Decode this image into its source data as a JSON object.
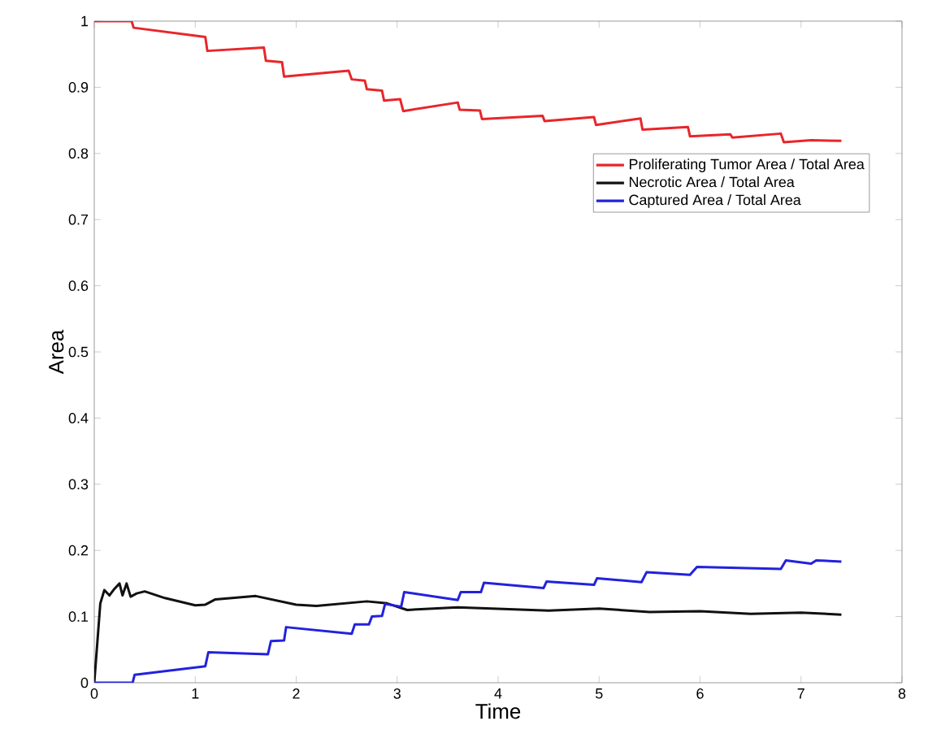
{
  "chart_data": {
    "type": "line",
    "xlabel": "Time",
    "ylabel": "Area",
    "xlim": [
      0,
      8
    ],
    "xticks": [
      0,
      1,
      2,
      3,
      4,
      5,
      6,
      7,
      8
    ],
    "ylim": [
      0,
      1
    ],
    "yticks": [
      0,
      0.1,
      0.2,
      0.3,
      0.4,
      0.5,
      0.6,
      0.7,
      0.8,
      0.9,
      1
    ],
    "grid": false,
    "legend": "top right",
    "line_style": "solid",
    "marker": "none",
    "series": [
      {
        "name": "Proliferating Tumor Area / Total Area",
        "color": "#e8262a",
        "x": [
          0,
          0.37,
          0.39,
          1.1,
          1.12,
          1.68,
          1.7,
          1.86,
          1.88,
          2.52,
          2.55,
          2.68,
          2.7,
          2.85,
          2.87,
          3.03,
          3.06,
          3.6,
          3.62,
          3.82,
          3.84,
          4.44,
          4.46,
          4.95,
          4.97,
          5.41,
          5.43,
          5.88,
          5.9,
          6.3,
          6.32,
          6.8,
          6.83,
          7.1,
          7.4
        ],
        "values": [
          1,
          1,
          0.99,
          0.976,
          0.955,
          0.96,
          0.94,
          0.938,
          0.916,
          0.925,
          0.912,
          0.91,
          0.897,
          0.895,
          0.88,
          0.882,
          0.864,
          0.877,
          0.866,
          0.865,
          0.852,
          0.857,
          0.849,
          0.855,
          0.843,
          0.853,
          0.836,
          0.84,
          0.826,
          0.829,
          0.824,
          0.83,
          0.817,
          0.82,
          0.819
        ]
      },
      {
        "name": "Necrotic Area / Total Area",
        "color": "#111111",
        "x": [
          0,
          0.03,
          0.06,
          0.1,
          0.15,
          0.2,
          0.25,
          0.28,
          0.32,
          0.36,
          0.42,
          0.5,
          0.7,
          1.0,
          1.1,
          1.2,
          1.6,
          2.0,
          2.2,
          2.7,
          2.9,
          3.1,
          3.6,
          4.5,
          5.0,
          5.5,
          6.0,
          6.5,
          7.0,
          7.4
        ],
        "values": [
          0,
          0.06,
          0.12,
          0.14,
          0.132,
          0.142,
          0.15,
          0.132,
          0.15,
          0.13,
          0.135,
          0.138,
          0.128,
          0.117,
          0.118,
          0.126,
          0.131,
          0.118,
          0.116,
          0.123,
          0.12,
          0.11,
          0.114,
          0.109,
          0.112,
          0.107,
          0.108,
          0.104,
          0.106,
          0.103
        ]
      },
      {
        "name": "Captured Area / Total Area",
        "color": "#2222dd",
        "x": [
          0,
          0.38,
          0.4,
          1.1,
          1.13,
          1.72,
          1.75,
          1.88,
          1.9,
          2.55,
          2.58,
          2.72,
          2.75,
          2.85,
          2.88,
          3.04,
          3.07,
          3.6,
          3.63,
          3.83,
          3.86,
          4.45,
          4.48,
          4.95,
          4.98,
          5.42,
          5.47,
          5.9,
          5.97,
          6.8,
          6.85,
          7.1,
          7.15,
          7.4
        ],
        "values": [
          0,
          0,
          0.012,
          0.025,
          0.046,
          0.043,
          0.063,
          0.064,
          0.084,
          0.074,
          0.088,
          0.088,
          0.1,
          0.101,
          0.119,
          0.115,
          0.137,
          0.125,
          0.137,
          0.137,
          0.151,
          0.143,
          0.153,
          0.148,
          0.158,
          0.152,
          0.167,
          0.163,
          0.175,
          0.172,
          0.185,
          0.18,
          0.185,
          0.183
        ]
      }
    ]
  }
}
